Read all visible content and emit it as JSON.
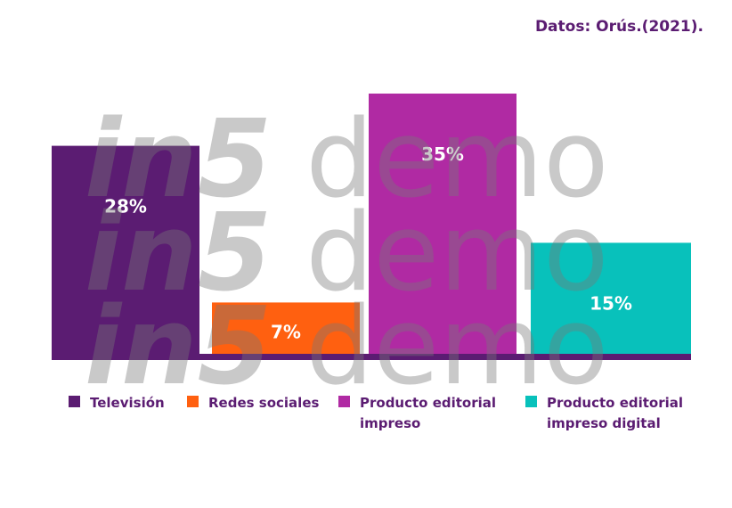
{
  "source_note": "Datos: Orús.(2021).",
  "watermark": {
    "brand": "in5",
    "word": "demo"
  },
  "colors": {
    "text": "#5b1c72",
    "axis": "#5b1c72"
  },
  "chart_data": {
    "type": "bar",
    "categories": [
      "Televisión",
      "Redes sociales",
      "Producto editorial impreso",
      "Producto editorial impreso digital"
    ],
    "legend_lines": [
      [
        "Televisión"
      ],
      [
        "Redes sociales"
      ],
      [
        "Producto editorial",
        "impreso"
      ],
      [
        "Producto editorial",
        "impreso digital"
      ]
    ],
    "values": [
      28,
      7,
      35,
      15
    ],
    "data_labels": [
      "28%",
      "7%",
      "35%",
      "15%"
    ],
    "colors": [
      "#5b1c72",
      "#ff6010",
      "#b02aa3",
      "#08c1bb"
    ],
    "ylim": [
      0,
      35
    ],
    "legend_position": "bottom",
    "grid": false,
    "title": "",
    "xlabel": "",
    "ylabel": ""
  }
}
